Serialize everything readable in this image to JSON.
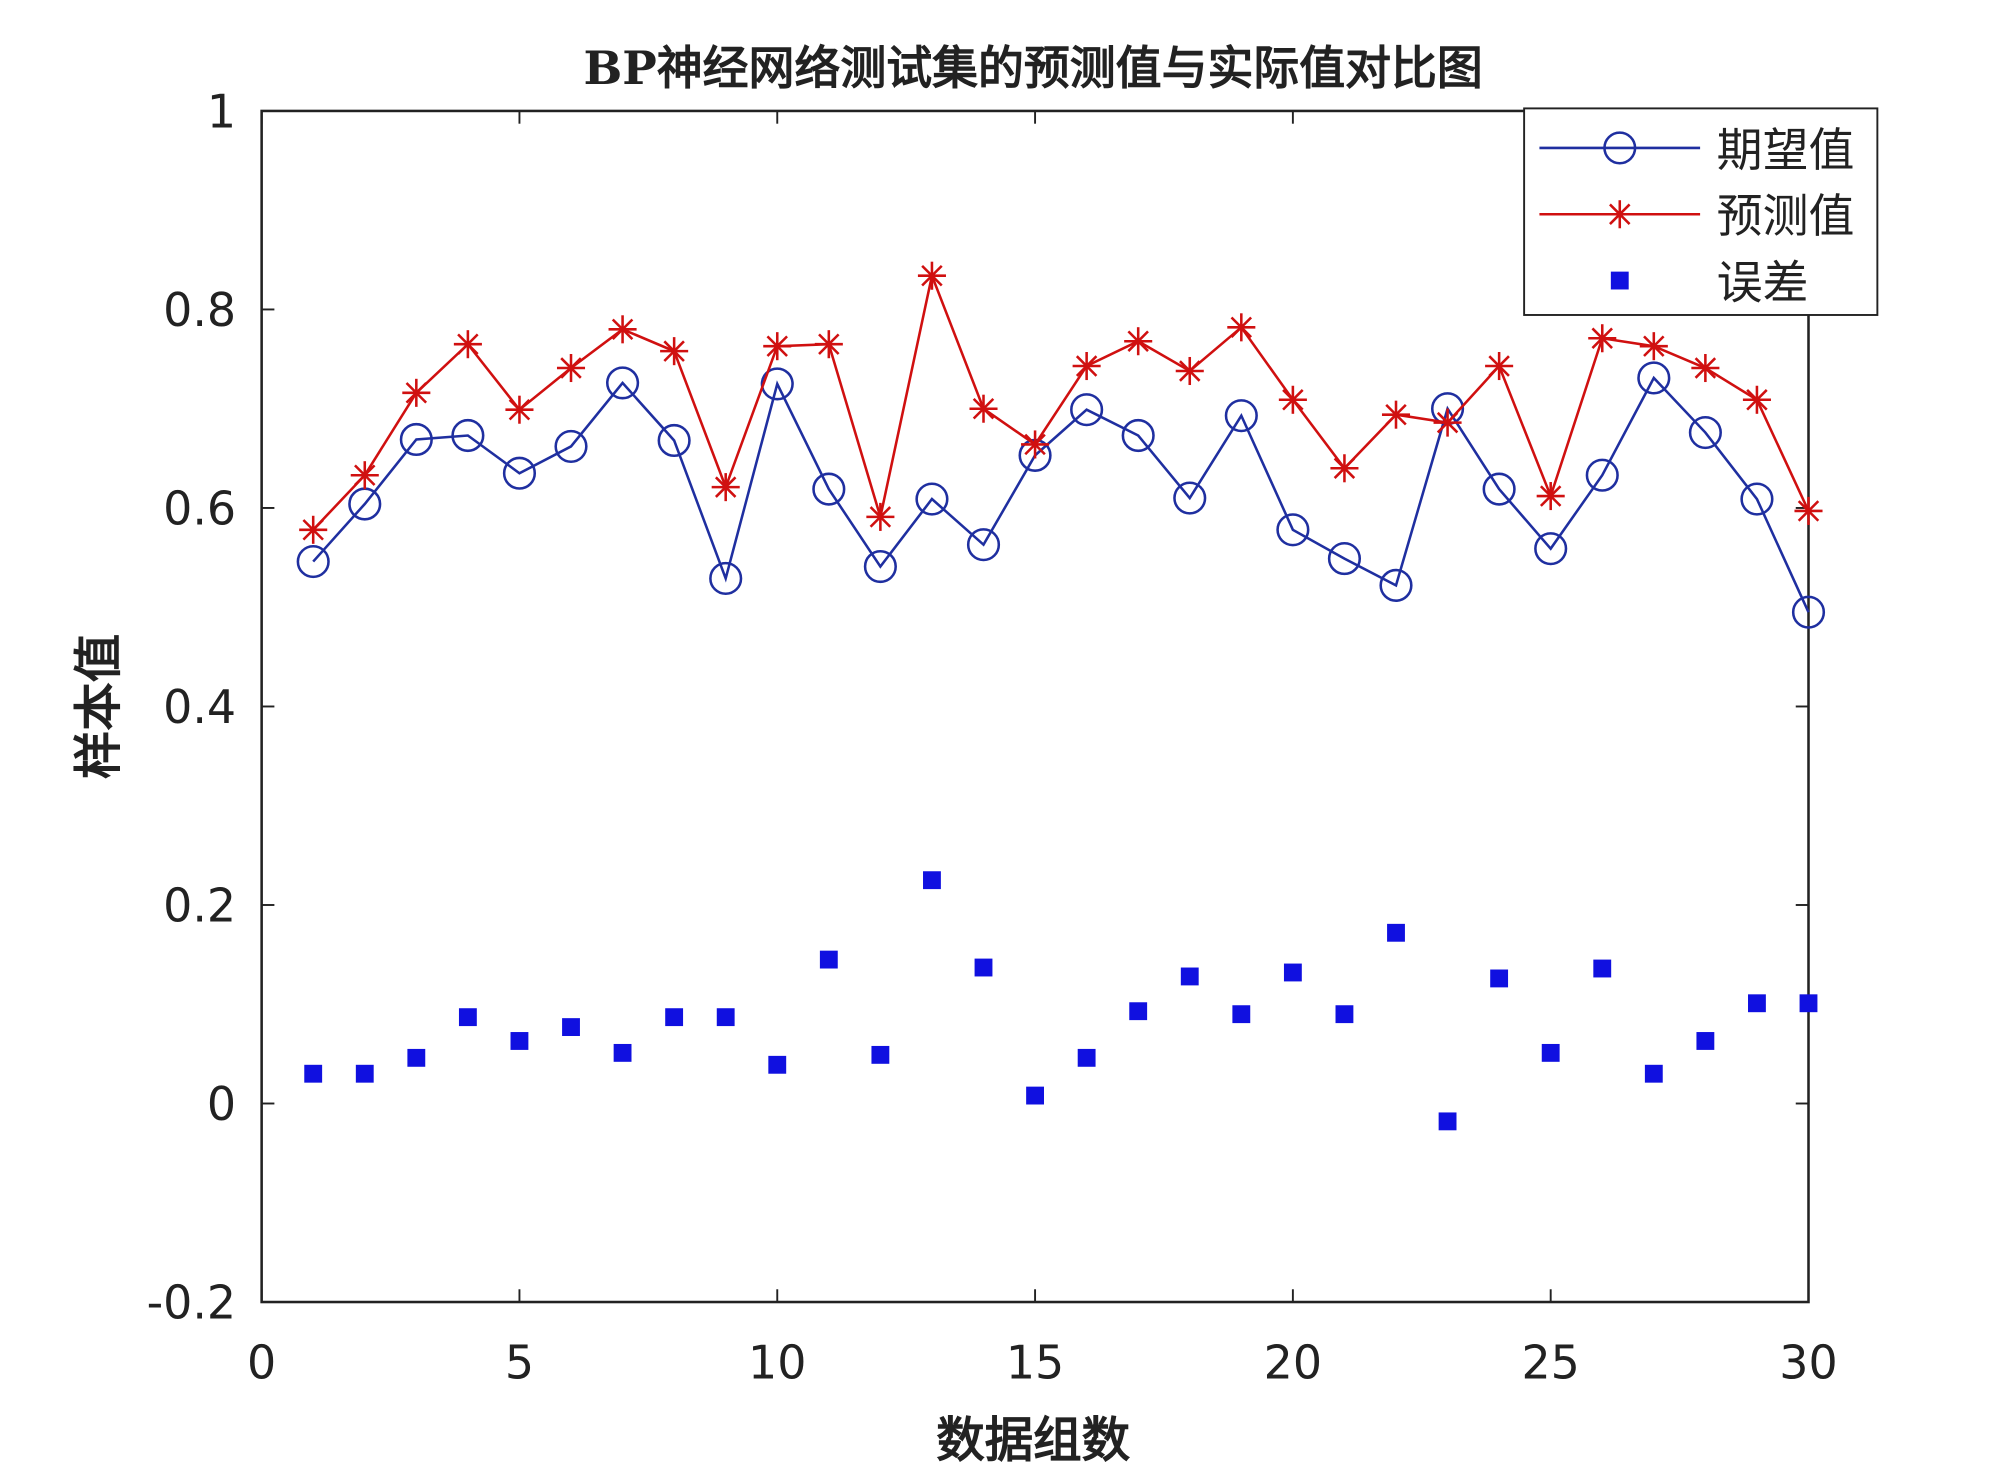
{
  "chart_data": {
    "type": "line",
    "title": "BP神经网络测试集的预测值与实际值对比图",
    "xlabel": "数据组数",
    "ylabel": "样本值",
    "xlim": [
      0,
      30
    ],
    "ylim": [
      -0.2,
      1
    ],
    "xticks": [
      "0",
      "5",
      "10",
      "15",
      "20",
      "25",
      "30"
    ],
    "yticks": [
      "-0.2",
      "0",
      "0.2",
      "0.4",
      "0.6",
      "0.8",
      "1"
    ],
    "grid": false,
    "legend_position": "top-right",
    "x": [
      1,
      2,
      3,
      4,
      5,
      6,
      7,
      8,
      9,
      10,
      11,
      12,
      13,
      14,
      15,
      16,
      17,
      18,
      19,
      20,
      21,
      22,
      23,
      24,
      25,
      26,
      27,
      28,
      29,
      30
    ],
    "series": [
      {
        "name": "期望值",
        "color": "#1f2fa0",
        "marker": "circle",
        "line": true,
        "values": [
          0.546,
          0.604,
          0.669,
          0.673,
          0.635,
          0.662,
          0.726,
          0.668,
          0.529,
          0.725,
          0.619,
          0.541,
          0.609,
          0.563,
          0.653,
          0.699,
          0.673,
          0.61,
          0.693,
          0.578,
          0.549,
          0.522,
          0.7,
          0.619,
          0.559,
          0.633,
          0.731,
          0.676,
          0.609,
          0.495
        ]
      },
      {
        "name": "预测值",
        "color": "#d01010",
        "marker": "star",
        "line": true,
        "values": [
          0.578,
          0.633,
          0.716,
          0.765,
          0.699,
          0.741,
          0.78,
          0.758,
          0.621,
          0.763,
          0.765,
          0.591,
          0.834,
          0.7,
          0.664,
          0.743,
          0.768,
          0.738,
          0.782,
          0.709,
          0.64,
          0.694,
          0.686,
          0.743,
          0.612,
          0.771,
          0.763,
          0.741,
          0.709,
          0.597
        ]
      },
      {
        "name": "误差",
        "color": "#1010e0",
        "marker": "square",
        "line": false,
        "values": [
          0.03,
          0.03,
          0.046,
          0.087,
          0.063,
          0.077,
          0.051,
          0.087,
          0.087,
          0.039,
          0.145,
          0.049,
          0.225,
          0.137,
          0.008,
          0.046,
          0.093,
          0.128,
          0.09,
          0.132,
          0.09,
          0.172,
          -0.018,
          0.126,
          0.051,
          0.136,
          0.03,
          0.063,
          0.101,
          0.101
        ]
      }
    ]
  }
}
